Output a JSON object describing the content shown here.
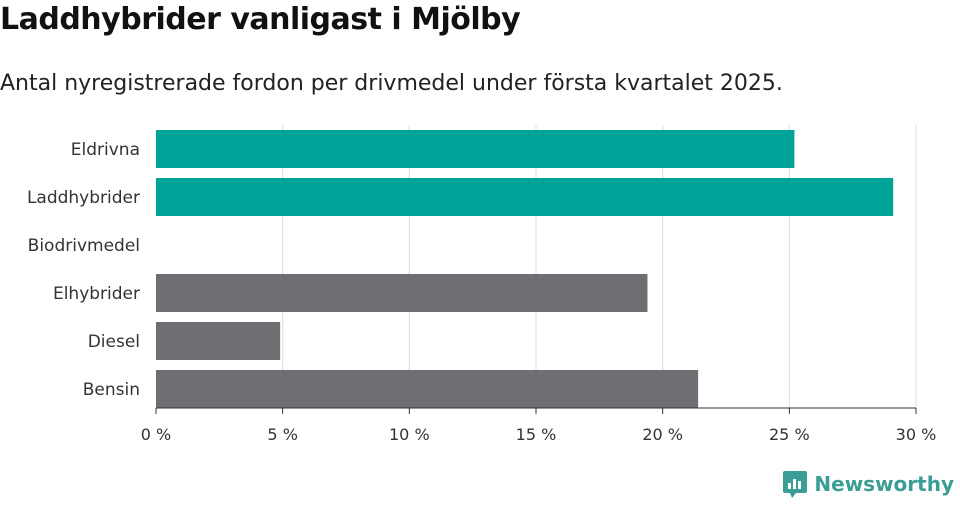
{
  "title": "Laddhybrider vanligast i Mjölby",
  "subtitle": "Antal nyregistrerade fordon per drivmedel under första kvartalet 2025.",
  "brand": {
    "name": "Newsworthy",
    "icon": "newsworthy-logo-icon",
    "color": "#3a9d96"
  },
  "chart_data": {
    "type": "bar",
    "orientation": "horizontal",
    "title": "Laddhybrider vanligast i Mjölby",
    "subtitle": "Antal nyregistrerade fordon per drivmedel under första kvartalet 2025.",
    "categories": [
      "Eldrivna",
      "Laddhybrider",
      "Biodrivmedel",
      "Elhybrider",
      "Diesel",
      "Bensin"
    ],
    "values": [
      25.2,
      29.1,
      0,
      19.4,
      4.9,
      21.4
    ],
    "colors": [
      "#00a398",
      "#00a398",
      "#00a398",
      "#6f6e73",
      "#6f6e73",
      "#6f6e73"
    ],
    "unit": "%",
    "xlim": [
      0,
      30
    ],
    "xticks": [
      0,
      5,
      10,
      15,
      20,
      25,
      30
    ],
    "xtick_labels": [
      "0 %",
      "5 %",
      "10 %",
      "15 %",
      "20 %",
      "25 %",
      "30 %"
    ],
    "grid": true,
    "legend": "none"
  }
}
